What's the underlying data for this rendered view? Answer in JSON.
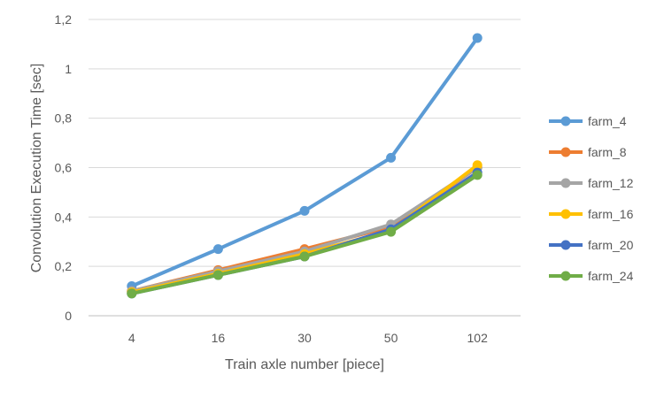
{
  "chart_data": {
    "type": "line",
    "categories": [
      "4",
      "16",
      "30",
      "50",
      "102"
    ],
    "ylim": [
      0,
      1.2
    ],
    "yticks": [
      "0",
      "0,2",
      "0,4",
      "0,6",
      "0,8",
      "1",
      "1,2"
    ],
    "xlabel": "Train axle number [piece]",
    "ylabel": "Convolution Execution Time [sec]",
    "grid": "horizontal",
    "legend_position": "right",
    "series": [
      {
        "name": "farm_4",
        "color": "#5B9BD5",
        "values": [
          0.12,
          0.27,
          0.425,
          0.64,
          1.125
        ]
      },
      {
        "name": "farm_8",
        "color": "#ED7D31",
        "values": [
          0.1,
          0.185,
          0.27,
          0.36,
          0.6
        ]
      },
      {
        "name": "farm_12",
        "color": "#A5A5A5",
        "values": [
          0.1,
          0.18,
          0.26,
          0.37,
          0.6
        ]
      },
      {
        "name": "farm_16",
        "color": "#FFC000",
        "values": [
          0.095,
          0.17,
          0.25,
          0.345,
          0.61
        ]
      },
      {
        "name": "farm_20",
        "color": "#4472C4",
        "values": [
          0.09,
          0.165,
          0.24,
          0.35,
          0.58
        ]
      },
      {
        "name": "farm_24",
        "color": "#70AD47",
        "values": [
          0.09,
          0.165,
          0.24,
          0.34,
          0.57
        ]
      }
    ]
  }
}
